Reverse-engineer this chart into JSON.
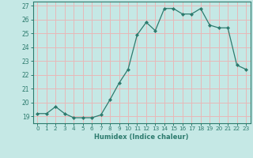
{
  "x": [
    0,
    1,
    2,
    3,
    4,
    5,
    6,
    7,
    8,
    9,
    10,
    11,
    12,
    13,
    14,
    15,
    16,
    17,
    18,
    19,
    20,
    21,
    22,
    23
  ],
  "y": [
    19.2,
    19.2,
    19.7,
    19.2,
    18.9,
    18.9,
    18.9,
    19.1,
    20.2,
    21.4,
    22.4,
    24.9,
    25.8,
    25.2,
    26.8,
    26.8,
    26.4,
    26.4,
    26.8,
    25.6,
    25.4,
    25.4,
    22.7,
    22.4
  ],
  "xlabel": "Humidex (Indice chaleur)",
  "ylim": [
    18.5,
    27.3
  ],
  "xlim": [
    -0.5,
    23.5
  ],
  "yticks": [
    19,
    20,
    21,
    22,
    23,
    24,
    25,
    26,
    27
  ],
  "xticks": [
    0,
    1,
    2,
    3,
    4,
    5,
    6,
    7,
    8,
    9,
    10,
    11,
    12,
    13,
    14,
    15,
    16,
    17,
    18,
    19,
    20,
    21,
    22,
    23
  ],
  "line_color": "#2d7b6e",
  "marker_color": "#2d7b6e",
  "bg_color": "#c5e8e5",
  "grid_color": "#e8b8b8",
  "axis_color": "#2d7b6e",
  "tick_color": "#2d7b6e",
  "xlabel_color": "#2d7b6e"
}
